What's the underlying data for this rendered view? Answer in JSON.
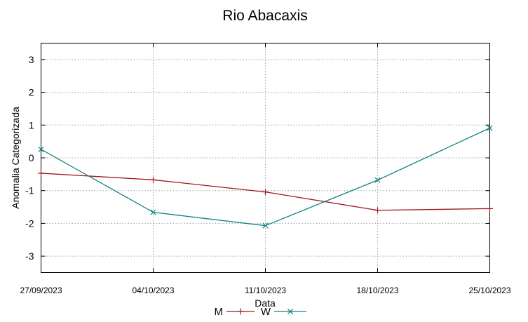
{
  "chart_data": {
    "type": "line",
    "title": "Rio Abacaxis",
    "xlabel": "Data",
    "ylabel": "Anomalia Categorizada",
    "categories": [
      "27/09/2023",
      "04/10/2023",
      "11/10/2023",
      "18/10/2023",
      "25/10/2023"
    ],
    "ylim": [
      -3.5,
      3.5
    ],
    "yticks": [
      3,
      2,
      1,
      0,
      -1,
      -2,
      -3
    ],
    "grid": true,
    "legend_position": "bottom-center",
    "series": [
      {
        "name": "M",
        "color": "#a0141e",
        "marker": "plus",
        "values": [
          -0.47,
          -0.67,
          -1.04,
          -1.6,
          -1.55
        ]
      },
      {
        "name": "W",
        "color": "#128282",
        "marker": "cross",
        "values": [
          0.26,
          -1.66,
          -2.07,
          -0.68,
          0.91
        ]
      }
    ]
  }
}
